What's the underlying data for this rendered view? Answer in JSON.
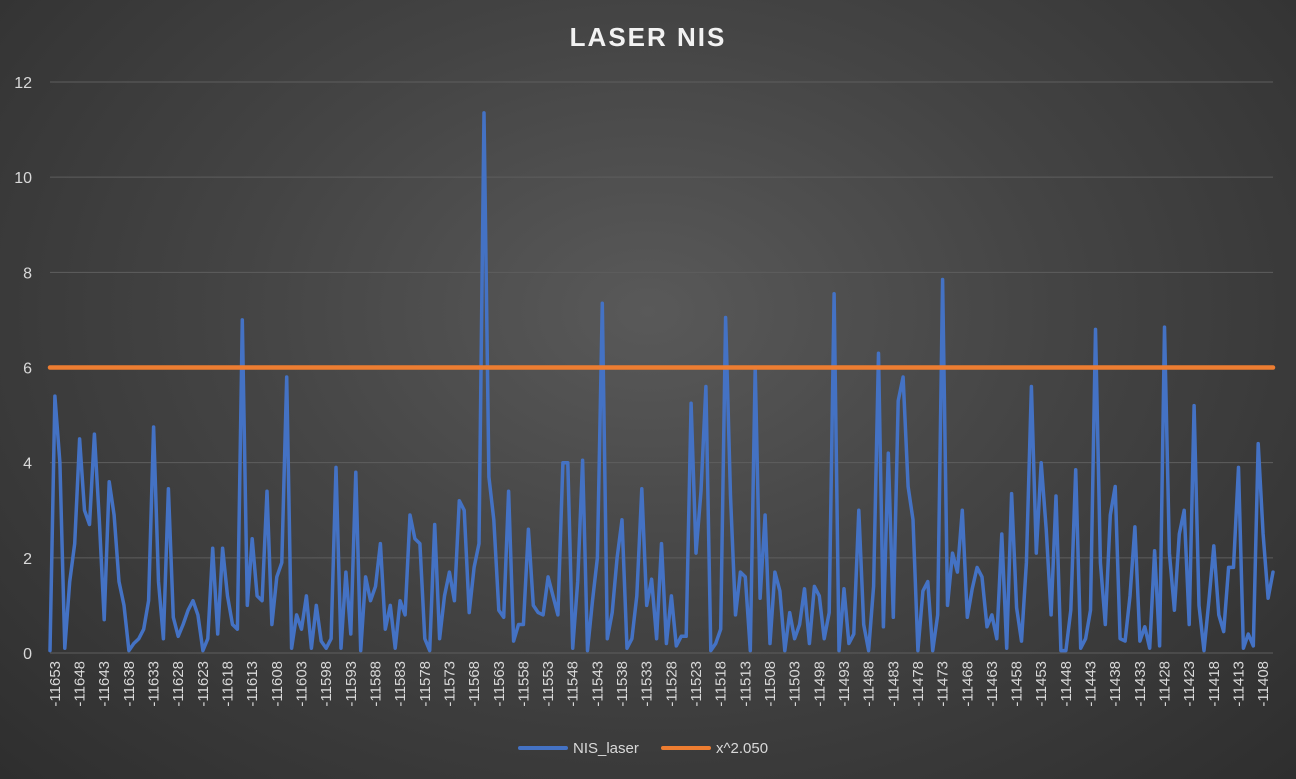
{
  "chart_data": {
    "type": "line",
    "title": "LASER NIS",
    "xlabel": "",
    "ylabel": "",
    "ylim": [
      0,
      12
    ],
    "yticks": [
      0,
      2,
      4,
      6,
      8,
      10,
      12
    ],
    "x_start": -11654,
    "x_step": 1,
    "x_tick_labels": [
      "-11653",
      "-11648",
      "-11643",
      "-11638",
      "-11633",
      "-11628",
      "-11623",
      "-11618",
      "-11613",
      "-11608",
      "-11603",
      "-11598",
      "-11593",
      "-11588",
      "-11583",
      "-11578",
      "-11573",
      "-11568",
      "-11563",
      "-11558",
      "-11553",
      "-11548",
      "-11543",
      "-11538",
      "-11533",
      "-11528",
      "-11523",
      "-11518",
      "-11513",
      "-11508",
      "-11503",
      "-11498",
      "-11493",
      "-11488",
      "-11483",
      "-11478",
      "-11473",
      "-11468",
      "-11463",
      "-11458",
      "-11453",
      "-11448",
      "-11443",
      "-11438",
      "-11433",
      "-11428",
      "-11423",
      "-11418",
      "-11413",
      "-11408"
    ],
    "grid": true,
    "legend_position": "bottom",
    "series": [
      {
        "name": "NIS_laser",
        "color": "#4472c4",
        "values": [
          0.05,
          5.4,
          4.0,
          0.1,
          1.5,
          2.3,
          4.5,
          3.0,
          2.7,
          4.6,
          2.8,
          0.7,
          3.6,
          2.9,
          1.5,
          1.0,
          0.05,
          0.2,
          0.3,
          0.5,
          1.1,
          4.75,
          1.5,
          0.3,
          3.45,
          0.75,
          0.35,
          0.6,
          0.9,
          1.1,
          0.8,
          0.05,
          0.3,
          2.2,
          0.4,
          2.2,
          1.2,
          0.6,
          0.5,
          7.0,
          1.0,
          2.4,
          1.2,
          1.1,
          3.4,
          0.6,
          1.6,
          1.9,
          5.8,
          0.1,
          0.8,
          0.5,
          1.2,
          0.1,
          1.0,
          0.25,
          0.1,
          0.3,
          3.9,
          0.1,
          1.7,
          0.4,
          3.8,
          0.05,
          1.6,
          1.1,
          1.4,
          2.3,
          0.5,
          1.0,
          0.1,
          1.1,
          0.8,
          2.9,
          2.4,
          2.3,
          0.3,
          0.05,
          2.7,
          0.3,
          1.2,
          1.7,
          1.1,
          3.2,
          3.0,
          0.85,
          1.8,
          2.3,
          11.35,
          3.7,
          2.8,
          0.9,
          0.75,
          3.4,
          0.25,
          0.6,
          0.6,
          2.6,
          1.0,
          0.85,
          0.8,
          1.6,
          1.2,
          0.8,
          4.0,
          4.0,
          0.1,
          1.5,
          4.05,
          0.05,
          1.1,
          2.0,
          7.35,
          0.3,
          0.85,
          2.0,
          2.8,
          0.1,
          0.3,
          1.2,
          3.45,
          1.0,
          1.55,
          0.3,
          2.3,
          0.2,
          1.2,
          0.15,
          0.35,
          0.35,
          5.25,
          2.1,
          3.4,
          5.6,
          0.05,
          0.2,
          0.5,
          7.05,
          3.3,
          0.8,
          1.7,
          1.6,
          0.05,
          6.0,
          1.15,
          2.9,
          0.2,
          1.7,
          1.3,
          0.05,
          0.85,
          0.3,
          0.6,
          1.35,
          0.2,
          1.4,
          1.2,
          0.3,
          0.85,
          7.55,
          0.05,
          1.35,
          0.2,
          0.4,
          3.0,
          0.6,
          0.05,
          1.4,
          6.3,
          0.55,
          4.2,
          0.75,
          5.3,
          5.8,
          3.5,
          2.8,
          0.05,
          1.3,
          1.5,
          0.05,
          0.8,
          7.85,
          1.0,
          2.1,
          1.7,
          3.0,
          0.75,
          1.35,
          1.8,
          1.6,
          0.55,
          0.8,
          0.3,
          2.5,
          0.1,
          3.35,
          0.95,
          0.25,
          1.9,
          5.6,
          2.1,
          4.0,
          2.6,
          0.8,
          3.3,
          0.05,
          0.05,
          0.9,
          3.85,
          0.1,
          0.3,
          0.9,
          6.8,
          1.9,
          0.6,
          2.9,
          3.5,
          0.3,
          0.25,
          1.2,
          2.65,
          0.25,
          0.55,
          0.1,
          2.15,
          0.15,
          6.85,
          2.1,
          0.9,
          2.5,
          3.0,
          0.6,
          5.2,
          1.0,
          0.05,
          1.1,
          2.25,
          0.8,
          0.45,
          1.8,
          1.8,
          3.9,
          0.1,
          0.4,
          0.15,
          4.4,
          2.5,
          1.15,
          1.7
        ]
      },
      {
        "name": "x^2.050",
        "color": "#ed7d31",
        "constant": 6
      }
    ]
  }
}
